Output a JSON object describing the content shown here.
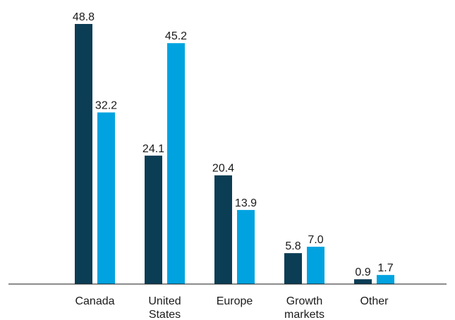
{
  "chart_data": {
    "type": "bar",
    "categories": [
      "Canada",
      "United States",
      "Europe",
      "Growth markets",
      "Other"
    ],
    "category_lines": [
      [
        "Canada"
      ],
      [
        "United",
        "States"
      ],
      [
        "Europe"
      ],
      [
        "Growth",
        "markets"
      ],
      [
        "Other"
      ]
    ],
    "series": [
      {
        "color": "#0b3d55",
        "values": [
          48.8,
          24.1,
          20.4,
          5.8,
          0.9
        ]
      },
      {
        "color": "#00a3e0",
        "values": [
          32.2,
          45.2,
          13.9,
          7.0,
          1.7
        ]
      }
    ],
    "value_labels": [
      [
        "48.8",
        "24.1",
        "20.4",
        "5.8",
        "0.9"
      ],
      [
        "32.2",
        "45.2",
        "13.9",
        "7.0",
        "1.7"
      ]
    ],
    "ylim": [
      0,
      50
    ],
    "grid": false,
    "legend": "none",
    "axis_color": "#1a1a1a"
  }
}
